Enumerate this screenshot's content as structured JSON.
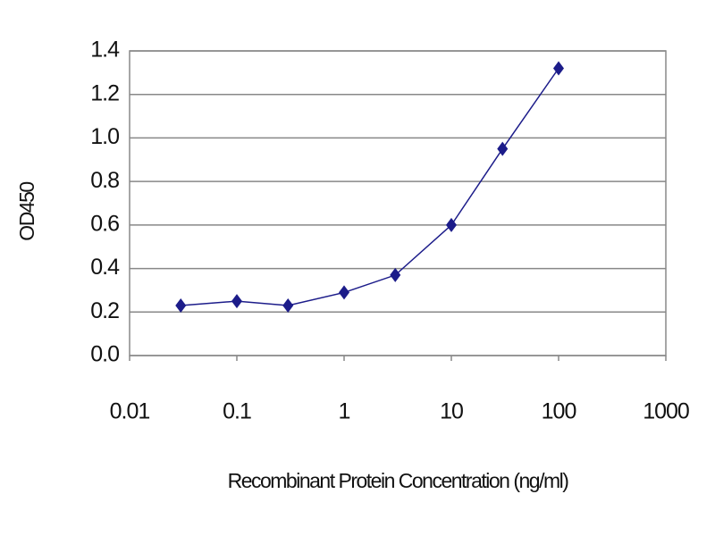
{
  "chart_data": {
    "type": "line",
    "xlabel": "Recombinant Protein Concentration (ng/ml)",
    "ylabel": "OD450",
    "x": [
      0.03,
      0.1,
      0.3,
      1,
      3,
      10,
      30,
      100
    ],
    "values": [
      0.23,
      0.25,
      0.23,
      0.29,
      0.37,
      0.6,
      0.95,
      1.32
    ],
    "color": "#1c1c8a",
    "xscale": "log",
    "xlim": [
      0.01,
      1000
    ],
    "xticks": [
      0.01,
      0.1,
      1,
      10,
      100,
      1000
    ],
    "ylim": [
      0,
      1.4
    ],
    "yticks": [
      {
        "value": 0,
        "label": "0.0"
      },
      0.2,
      0.4,
      0.6,
      0.8,
      {
        "value": 1,
        "label": "1.0"
      },
      1.2,
      1.4
    ],
    "grid": true
  }
}
